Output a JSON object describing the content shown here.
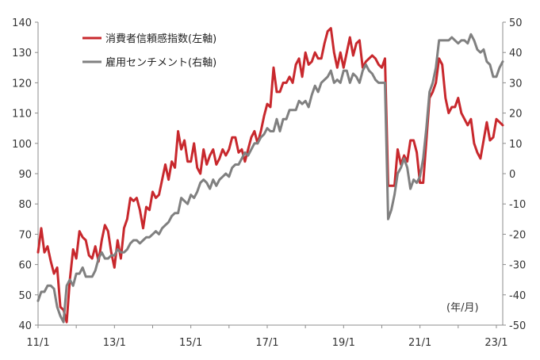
{
  "chart_data": {
    "type": "line",
    "x_tick_labels": [
      "11/1",
      "13/1",
      "15/1",
      "17/1",
      "19/1",
      "21/1",
      "23/1"
    ],
    "x_unit": "(年/月)",
    "y_left_ticks": [
      40,
      50,
      60,
      70,
      80,
      90,
      100,
      110,
      120,
      130,
      140
    ],
    "y_right_ticks": [
      -50,
      -40,
      -30,
      -20,
      -10,
      0,
      10,
      20,
      30,
      40,
      50
    ],
    "ylim_left": [
      40,
      140
    ],
    "ylim_right": [
      -50,
      50
    ],
    "xlim_months": [
      0,
      146
    ],
    "grid": false,
    "legend_position": "top-left",
    "series": [
      {
        "name": "消費者信頼感指数(左軸)",
        "axis": "left",
        "color": "#c8282d",
        "x": [
          0,
          1,
          2,
          3,
          4,
          5,
          6,
          7,
          8,
          9,
          10,
          11,
          12,
          13,
          14,
          15,
          16,
          17,
          18,
          19,
          20,
          21,
          22,
          23,
          24,
          25,
          26,
          27,
          28,
          29,
          30,
          31,
          32,
          33,
          34,
          35,
          36,
          37,
          38,
          39,
          40,
          41,
          42,
          43,
          44,
          45,
          46,
          47,
          48,
          49,
          50,
          51,
          52,
          53,
          54,
          55,
          56,
          57,
          58,
          59,
          60,
          61,
          62,
          63,
          64,
          65,
          66,
          67,
          68,
          69,
          70,
          71,
          72,
          73,
          74,
          75,
          76,
          77,
          78,
          79,
          80,
          81,
          82,
          83,
          84,
          85,
          86,
          87,
          88,
          89,
          90,
          91,
          92,
          93,
          94,
          95,
          96,
          97,
          98,
          99,
          100,
          101,
          102,
          103,
          104,
          105,
          106,
          107,
          108,
          109,
          110,
          111,
          112,
          113,
          114,
          115,
          116,
          117,
          118,
          119,
          120,
          121,
          122,
          123,
          124,
          125,
          126,
          127,
          128,
          129,
          130,
          131,
          132,
          133,
          134,
          135,
          136,
          137,
          138,
          139,
          140,
          141,
          142,
          143,
          144,
          145,
          146
        ],
        "y": [
          64,
          72,
          64,
          66,
          61,
          57,
          59,
          46,
          45,
          41,
          55,
          65,
          62,
          71,
          69,
          68,
          63,
          62,
          66,
          61,
          68,
          73,
          71,
          64,
          59,
          68,
          62,
          72,
          75,
          82,
          81,
          82,
          78,
          72,
          79,
          78,
          84,
          82,
          83,
          88,
          93,
          88,
          94,
          92,
          104,
          98,
          101,
          94,
          94,
          100,
          92,
          90,
          98,
          93,
          96,
          98,
          93,
          95,
          98,
          96,
          98,
          102,
          102,
          97,
          98,
          94,
          98,
          102,
          104,
          100,
          104,
          109,
          113,
          112,
          125,
          117,
          117,
          120,
          120,
          122,
          120,
          126,
          128,
          122,
          130,
          126,
          127,
          130,
          128,
          128,
          133,
          137,
          138,
          130,
          125,
          130,
          125,
          130,
          135,
          129,
          133,
          134,
          125,
          127,
          128,
          129,
          128,
          126,
          125,
          128,
          86,
          86,
          86,
          98,
          93,
          96,
          94,
          101,
          101,
          97,
          87,
          87,
          101,
          115,
          117,
          120,
          128,
          126,
          115,
          110,
          112,
          112,
          115,
          110,
          108,
          106,
          108,
          100,
          97,
          95,
          101,
          107,
          101,
          102,
          108,
          107,
          106
        ]
      },
      {
        "name": "雇用センチメント(右軸)",
        "axis": "right",
        "color": "#808080",
        "x": [
          0,
          1,
          2,
          3,
          4,
          5,
          6,
          7,
          8,
          9,
          10,
          11,
          12,
          13,
          14,
          15,
          16,
          17,
          18,
          19,
          20,
          21,
          22,
          23,
          24,
          25,
          26,
          27,
          28,
          29,
          30,
          31,
          32,
          33,
          34,
          35,
          36,
          37,
          38,
          39,
          40,
          41,
          42,
          43,
          44,
          45,
          46,
          47,
          48,
          49,
          50,
          51,
          52,
          53,
          54,
          55,
          56,
          57,
          58,
          59,
          60,
          61,
          62,
          63,
          64,
          65,
          66,
          67,
          68,
          69,
          70,
          71,
          72,
          73,
          74,
          75,
          76,
          77,
          78,
          79,
          80,
          81,
          82,
          83,
          84,
          85,
          86,
          87,
          88,
          89,
          90,
          91,
          92,
          93,
          94,
          95,
          96,
          97,
          98,
          99,
          100,
          101,
          102,
          103,
          104,
          105,
          106,
          107,
          108,
          109,
          110,
          111,
          112,
          113,
          114,
          115,
          116,
          117,
          118,
          119,
          120,
          121,
          122,
          123,
          124,
          125,
          126,
          127,
          128,
          129,
          130,
          131,
          132,
          133,
          134,
          135,
          136,
          137,
          138,
          139,
          140,
          141,
          142,
          143,
          144,
          145,
          146
        ],
        "y": [
          -42,
          -39,
          -39,
          -37,
          -37,
          -38,
          -44,
          -47,
          -49,
          -37,
          -35,
          -37,
          -33,
          -33,
          -31,
          -34,
          -34,
          -34,
          -32,
          -28,
          -26,
          -28,
          -28,
          -27,
          -27,
          -25,
          -26,
          -26,
          -25,
          -23,
          -22,
          -22,
          -23,
          -22,
          -21,
          -21,
          -20,
          -19,
          -20,
          -18,
          -17,
          -16,
          -14,
          -13,
          -13,
          -8,
          -9,
          -10,
          -7,
          -8,
          -6,
          -3,
          -2,
          -3,
          -5,
          -2,
          -4,
          -2,
          -1,
          0,
          -1,
          2,
          3,
          3,
          5,
          7,
          6,
          8,
          10,
          10,
          12,
          13,
          15,
          14,
          14,
          18,
          14,
          18,
          18,
          21,
          21,
          21,
          24,
          23,
          24,
          22,
          26,
          29,
          27,
          30,
          31,
          32,
          34,
          30,
          31,
          30,
          34,
          34,
          30,
          33,
          32,
          30,
          34,
          36,
          34,
          33,
          31,
          30,
          30,
          30,
          -15,
          -12,
          -7,
          0,
          2,
          5,
          2,
          -5,
          -2,
          -3,
          -1,
          5,
          15,
          27,
          30,
          35,
          44,
          44,
          44,
          44,
          45,
          44,
          43,
          44,
          44,
          43,
          46,
          44,
          41,
          40,
          41,
          37,
          36,
          32,
          32,
          35,
          37
        ]
      }
    ]
  }
}
